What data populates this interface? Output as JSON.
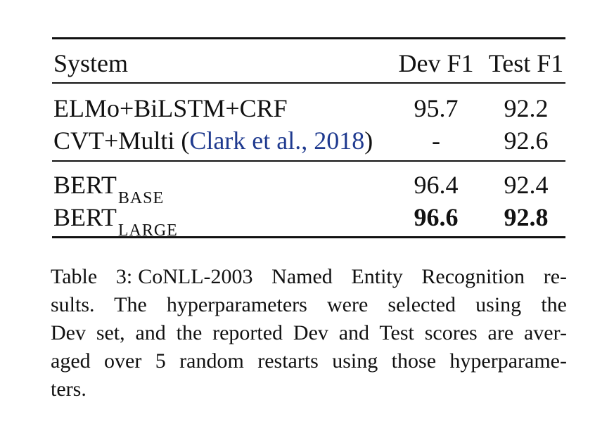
{
  "table": {
    "headers": {
      "system": "System",
      "dev": "Dev F1",
      "test": "Test F1"
    },
    "group1": [
      {
        "system": "ELMo+BiLSTM+CRF",
        "dev": "95.7",
        "test": "92.2"
      },
      {
        "system_prefix": "CVT+Multi (",
        "citation": "Clark et al., 2018",
        "system_suffix": ")",
        "dev": "-",
        "test": "92.6"
      }
    ],
    "group2": [
      {
        "system": "BERT",
        "subscript": "BASE",
        "dev": "96.4",
        "test": "92.4"
      },
      {
        "system": "BERT",
        "subscript": "LARGE",
        "dev": "96.6",
        "test": "92.8"
      }
    ]
  },
  "caption": {
    "label": "Table 3:",
    "lines": [
      "CoNLL-2003 Named Entity Recognition re-",
      "sults.  The hyperparameters were selected using the",
      "Dev set, and the reported Dev and Test scores are aver-",
      "aged over 5 random restarts using those hyperparame-",
      "ters."
    ]
  }
}
